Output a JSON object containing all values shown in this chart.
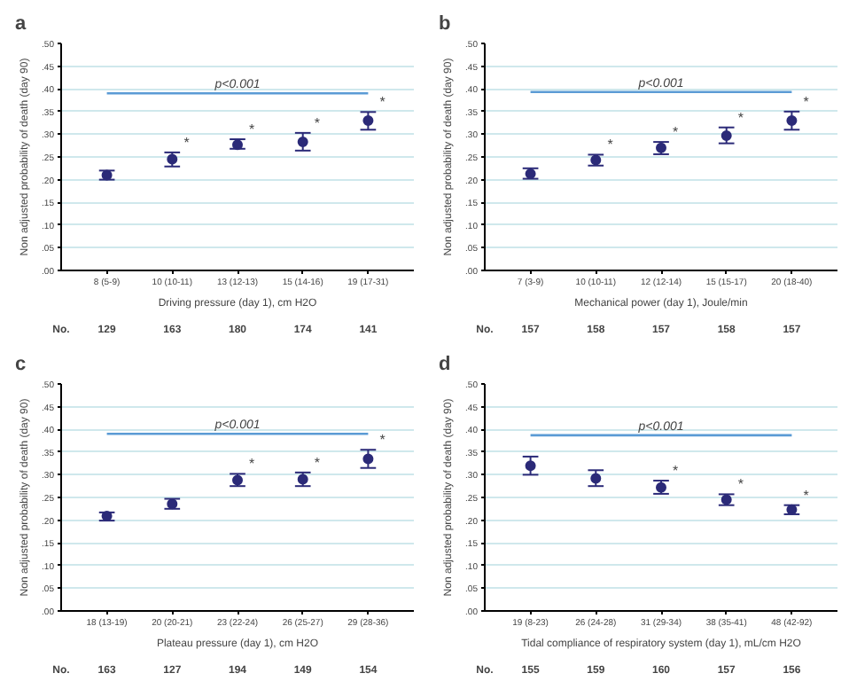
{
  "chart_data": [
    {
      "type": "scatter",
      "title": "a",
      "xlabel": "Driving pressure (day 1), cm H2O",
      "ylabel": "Non adjusted probability of death (day 90)",
      "categories": [
        "8 (5-9)",
        "10 (10-11)",
        "13 (12-13)",
        "15 (14-16)",
        "19 (17-31)"
      ],
      "series": [
        {
          "color": "#2b2a78",
          "values": [
            0.21,
            0.245,
            0.277,
            0.283,
            0.33
          ],
          "errors": [
            [
              0.2,
              0.22
            ],
            [
              0.229,
              0.26
            ],
            [
              0.268,
              0.289
            ],
            [
              0.264,
              0.303
            ],
            [
              0.31,
              0.349
            ]
          ]
        }
      ],
      "marker": "circle",
      "grid": "y",
      "ylim": [
        0,
        0.5
      ],
      "yticks": [
        {
          "value": 0,
          "label": ".00"
        },
        {
          "value": 0.05,
          "label": ".05"
        },
        {
          "value": 0.1,
          "label": ".10"
        },
        {
          "value": 0.15,
          "label": ".15"
        },
        {
          "value": 0.2,
          "label": ".20"
        },
        {
          "value": 0.25,
          "label": ".25"
        },
        {
          "value": 0.3,
          "label": ".30"
        },
        {
          "value": 0.35,
          "label": ".35"
        },
        {
          "value": 0.4,
          "label": ".40"
        },
        {
          "value": 0.45,
          "label": ".45"
        },
        {
          "value": 0.5,
          "label": ".50"
        }
      ],
      "ref_lines": [
        {
          "axis": "y",
          "value": 0.39,
          "label": "p<0.001",
          "color": "#5b9bd5"
        }
      ],
      "annotations": [
        "No.",
        "129",
        "163",
        "180",
        "174",
        "141",
        {
          "text": "*",
          "x": "10 (10-11)",
          "y": 0.26
        },
        {
          "text": "*",
          "x": "13 (12-13)",
          "y": 0.289
        },
        {
          "text": "*",
          "x": "15 (14-16)",
          "y": 0.303
        },
        {
          "text": "*",
          "x": "19 (17-31)",
          "y": 0.349
        }
      ]
    },
    {
      "type": "scatter",
      "title": "b",
      "xlabel": "Mechanical power (day 1), Joule/min",
      "ylabel": "Non adjusted probability of death (day 90)",
      "categories": [
        "7 (3-9)",
        "10 (10-11)",
        "12 (12-14)",
        "15 (15-17)",
        "20 (18-40)"
      ],
      "series": [
        {
          "color": "#2b2a78",
          "values": [
            0.213,
            0.243,
            0.27,
            0.297,
            0.33
          ],
          "errors": [
            [
              0.202,
              0.225
            ],
            [
              0.231,
              0.255
            ],
            [
              0.256,
              0.283
            ],
            [
              0.28,
              0.315
            ],
            [
              0.31,
              0.35
            ]
          ]
        }
      ],
      "marker": "circle",
      "grid": "y",
      "ylim": [
        0,
        0.5
      ],
      "yticks": [
        {
          "value": 0,
          "label": ".00"
        },
        {
          "value": 0.05,
          "label": ".05"
        },
        {
          "value": 0.1,
          "label": ".10"
        },
        {
          "value": 0.15,
          "label": ".15"
        },
        {
          "value": 0.2,
          "label": ".20"
        },
        {
          "value": 0.25,
          "label": ".25"
        },
        {
          "value": 0.3,
          "label": ".30"
        },
        {
          "value": 0.35,
          "label": ".35"
        },
        {
          "value": 0.4,
          "label": ".40"
        },
        {
          "value": 0.45,
          "label": ".45"
        },
        {
          "value": 0.5,
          "label": ".50"
        }
      ],
      "ref_lines": [
        {
          "axis": "y",
          "value": 0.393,
          "label": "p<0.001",
          "color": "#5b9bd5"
        }
      ],
      "annotations": [
        "No.",
        "157",
        "158",
        "157",
        "158",
        "157",
        {
          "text": "*",
          "x": "10 (10-11)",
          "y": 0.255
        },
        {
          "text": "*",
          "x": "12 (12-14)",
          "y": 0.283
        },
        {
          "text": "*",
          "x": "15 (15-17)",
          "y": 0.315
        },
        {
          "text": "*",
          "x": "20 (18-40)",
          "y": 0.35
        }
      ]
    },
    {
      "type": "scatter",
      "title": "c",
      "xlabel": "Plateau pressure (day 1), cm H2O",
      "ylabel": "Non adjusted probability of death (day 90)",
      "categories": [
        "18 (13-19)",
        "20 (20-21)",
        "23 (22-24)",
        "26 (25-27)",
        "29 (28-36)"
      ],
      "series": [
        {
          "color": "#2b2a78",
          "values": [
            0.209,
            0.236,
            0.288,
            0.29,
            0.335
          ],
          "errors": [
            [
              0.199,
              0.217
            ],
            [
              0.225,
              0.247
            ],
            [
              0.275,
              0.302
            ],
            [
              0.275,
              0.305
            ],
            [
              0.315,
              0.355
            ]
          ]
        }
      ],
      "marker": "circle",
      "grid": "y",
      "ylim": [
        0,
        0.5
      ],
      "yticks": [
        {
          "value": 0,
          "label": ".00"
        },
        {
          "value": 0.05,
          "label": ".05"
        },
        {
          "value": 0.1,
          "label": ".10"
        },
        {
          "value": 0.15,
          "label": ".15"
        },
        {
          "value": 0.2,
          "label": ".20"
        },
        {
          "value": 0.25,
          "label": ".25"
        },
        {
          "value": 0.3,
          "label": ".30"
        },
        {
          "value": 0.35,
          "label": ".35"
        },
        {
          "value": 0.4,
          "label": ".40"
        },
        {
          "value": 0.45,
          "label": ".45"
        },
        {
          "value": 0.5,
          "label": ".50"
        }
      ],
      "ref_lines": [
        {
          "axis": "y",
          "value": 0.39,
          "label": "p<0.001",
          "color": "#5b9bd5"
        }
      ],
      "annotations": [
        "No.",
        "163",
        "127",
        "194",
        "149",
        "154",
        {
          "text": "*",
          "x": "23 (22-24)",
          "y": 0.302
        },
        {
          "text": "*",
          "x": "26 (25-27)",
          "y": 0.305
        },
        {
          "text": "*",
          "x": "29 (28-36)",
          "y": 0.355
        }
      ]
    },
    {
      "type": "scatter",
      "title": "d",
      "xlabel": "Tidal compliance of respiratory system (day 1), mL/cm H2O",
      "ylabel": "Non adjusted probability of death (day 90)",
      "categories": [
        "19 (8-23)",
        "26 (24-28)",
        "31 (29-34)",
        "38 (35-41)",
        "48 (42-92)"
      ],
      "series": [
        {
          "color": "#2b2a78",
          "values": [
            0.32,
            0.292,
            0.272,
            0.245,
            0.223
          ],
          "errors": [
            [
              0.3,
              0.34
            ],
            [
              0.275,
              0.31
            ],
            [
              0.258,
              0.287
            ],
            [
              0.233,
              0.257
            ],
            [
              0.213,
              0.233
            ]
          ]
        }
      ],
      "marker": "circle",
      "grid": "y",
      "ylim": [
        0,
        0.5
      ],
      "yticks": [
        {
          "value": 0,
          "label": ".00"
        },
        {
          "value": 0.05,
          "label": ".05"
        },
        {
          "value": 0.1,
          "label": ".10"
        },
        {
          "value": 0.15,
          "label": ".15"
        },
        {
          "value": 0.2,
          "label": ".20"
        },
        {
          "value": 0.25,
          "label": ".25"
        },
        {
          "value": 0.3,
          "label": ".30"
        },
        {
          "value": 0.35,
          "label": ".35"
        },
        {
          "value": 0.4,
          "label": ".40"
        },
        {
          "value": 0.45,
          "label": ".45"
        },
        {
          "value": 0.5,
          "label": ".50"
        }
      ],
      "ref_lines": [
        {
          "axis": "y",
          "value": 0.387,
          "label": "p<0.001",
          "color": "#5b9bd5"
        }
      ],
      "annotations": [
        "No.",
        "155",
        "159",
        "160",
        "157",
        "156",
        {
          "text": "*",
          "x": "31 (29-34)",
          "y": 0.287
        },
        {
          "text": "*",
          "x": "38 (35-41)",
          "y": 0.257
        },
        {
          "text": "*",
          "x": "48 (42-92)",
          "y": 0.233
        }
      ]
    }
  ]
}
